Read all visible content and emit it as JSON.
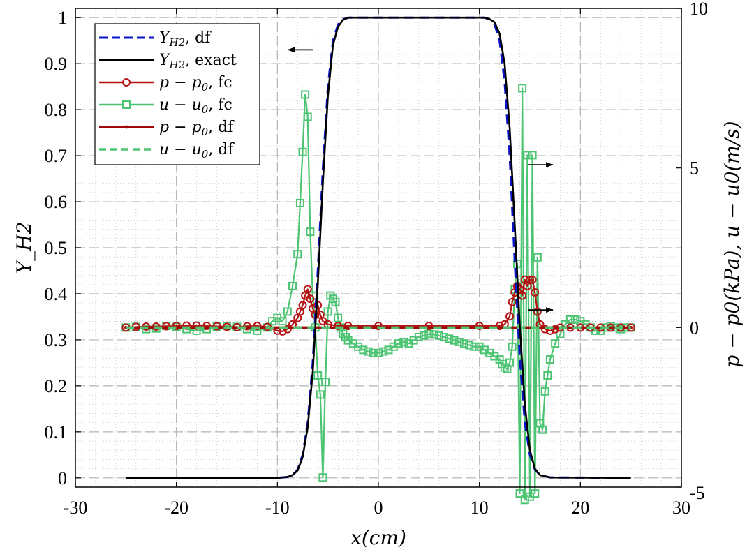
{
  "chart_data": {
    "type": "line",
    "xlabel": "x(cm)",
    "ylabel_left": "Y_H2",
    "ylabel_right": "p − p0(kPa), u − u0(m/s)",
    "xlim": [
      -30,
      30
    ],
    "ylim_left": [
      -0.02,
      1.02
    ],
    "ylim_right": [
      -5,
      10
    ],
    "x_ticks": [
      -30,
      -20,
      -10,
      0,
      10,
      20,
      30
    ],
    "x_tick_labels": [
      "-30",
      "-20",
      "-10",
      "0",
      "10",
      "20",
      "30"
    ],
    "left_ticks": [
      0,
      0.1,
      0.2,
      0.3,
      0.4,
      0.5,
      0.6,
      0.7,
      0.8,
      0.9,
      1
    ],
    "left_tick_labels": [
      "0",
      "0.1",
      "0.2",
      "0.3",
      "0.4",
      "0.5",
      "0.6",
      "0.7",
      "0.8",
      "0.9",
      "1"
    ],
    "right_ticks": [
      -5,
      0,
      5,
      10
    ],
    "right_tick_labels": [
      "-5",
      "0",
      "5",
      "10"
    ],
    "grid": true,
    "legend_position": "top-left",
    "annotations": [
      {
        "label": "arrow-left-to-left-axis",
        "x": -6.5,
        "y_left": 0.93,
        "dir": "left"
      },
      {
        "label": "arrow-right-to-right-axis-1",
        "x": 14.8,
        "y_right": 5.1,
        "dir": "right"
      },
      {
        "label": "arrow-right-to-right-axis-2",
        "x": 14.8,
        "y_right": 0.55,
        "dir": "right"
      }
    ],
    "series": [
      {
        "name": "Y_H2, df",
        "axis": "left",
        "color": "#0a14c8",
        "style": "dashed",
        "marker": "none",
        "legend": [
          "Y",
          "H2",
          ", df"
        ],
        "x": [
          -25,
          -10,
          -9,
          -8.5,
          -8,
          -7.5,
          -7,
          -6.5,
          -6,
          -5.5,
          -5,
          -4.5,
          -4,
          -3.5,
          -3,
          0,
          10.5,
          11,
          11.5,
          12,
          12.5,
          13,
          13.5,
          14,
          14.5,
          15,
          15.5,
          16,
          17,
          25
        ],
        "y": [
          0,
          0,
          0.002,
          0.006,
          0.018,
          0.05,
          0.12,
          0.25,
          0.45,
          0.67,
          0.85,
          0.95,
          0.985,
          0.996,
          1,
          1,
          1,
          0.996,
          0.985,
          0.95,
          0.86,
          0.7,
          0.47,
          0.26,
          0.12,
          0.05,
          0.018,
          0.006,
          0.001,
          0
        ]
      },
      {
        "name": "Y_H2, exact",
        "axis": "left",
        "color": "#000000",
        "style": "solid",
        "marker": "none",
        "legend": [
          "Y",
          "H2",
          ", exact"
        ],
        "x": [
          -25,
          -10,
          -9,
          -8.5,
          -8,
          -7.5,
          -7,
          -6.5,
          -6,
          -5.5,
          -5,
          -4.5,
          -4,
          -3.5,
          -3,
          0,
          10.5,
          11,
          11.5,
          12,
          12.5,
          13,
          13.5,
          14,
          14.5,
          15,
          15.5,
          16,
          17,
          25
        ],
        "y": [
          0,
          0,
          0.002,
          0.006,
          0.016,
          0.045,
          0.11,
          0.23,
          0.42,
          0.64,
          0.83,
          0.94,
          0.98,
          0.995,
          1,
          1,
          1,
          0.997,
          0.99,
          0.965,
          0.9,
          0.76,
          0.55,
          0.33,
          0.16,
          0.06,
          0.02,
          0.006,
          0.001,
          0
        ]
      },
      {
        "name": "p − p0, fc",
        "axis": "right",
        "color": "#b41414",
        "style": "solid",
        "marker": "circle",
        "legend": [
          "p − p",
          "0",
          ", fc"
        ],
        "x": [
          -25,
          -24,
          -23,
          -22,
          -21,
          -20,
          -19,
          -18,
          -17,
          -16,
          -15,
          -14,
          -13,
          -12,
          -11,
          -10,
          -9.5,
          -9,
          -8.5,
          -8,
          -7.75,
          -7.5,
          -7.25,
          -7,
          -6.75,
          -6.5,
          -6.25,
          -6,
          -5.75,
          -5.5,
          -5,
          -4,
          -3,
          0,
          5,
          10,
          12,
          12.5,
          13,
          13.25,
          13.5,
          13.75,
          14,
          14.25,
          14.5,
          14.75,
          15,
          15.25,
          15.5,
          15.75,
          16,
          16.5,
          17,
          17.5,
          18,
          19,
          20,
          21,
          22,
          23,
          24,
          25
        ],
        "y": [
          0,
          0.02,
          0.03,
          0.03,
          0.04,
          0.05,
          0.06,
          0.06,
          0.05,
          0.04,
          0.02,
          0.01,
          0.04,
          0.05,
          0.02,
          -0.1,
          -0.12,
          -0.05,
          0.1,
          0.3,
          0.5,
          0.7,
          1.0,
          1.2,
          0.9,
          0.6,
          0.4,
          0.7,
          0.4,
          0.2,
          0.1,
          0.05,
          0.05,
          0.05,
          0.05,
          0.05,
          0.05,
          0.1,
          0.35,
          0.8,
          1.1,
          1.3,
          1.2,
          1.0,
          1.5,
          1.3,
          1.5,
          1.5,
          1.1,
          0.5,
          0.1,
          -0.05,
          -0.1,
          -0.05,
          0,
          0,
          0,
          0,
          0,
          0,
          0,
          0
        ]
      },
      {
        "name": "u − u0, fc",
        "axis": "right",
        "color": "#4cc472",
        "style": "solid",
        "marker": "square",
        "legend": [
          "u − u",
          "0",
          ", fc"
        ],
        "x": [
          -25,
          -24,
          -23,
          -22,
          -21,
          -20,
          -19,
          -18,
          -17,
          -16,
          -15,
          -14,
          -13,
          -12,
          -11,
          -10.5,
          -10,
          -9.5,
          -9,
          -8.5,
          -8,
          -7.75,
          -7.5,
          -7.25,
          -7,
          -6.75,
          -6.5,
          -6.25,
          -6,
          -5.75,
          -5.5,
          -5.25,
          -5,
          -4.75,
          -4.5,
          -4.25,
          -4,
          -3.75,
          -3.5,
          -3.25,
          -3,
          -2.5,
          -2,
          -1.5,
          -1,
          -0.5,
          0,
          0.5,
          1,
          1.5,
          2,
          2.5,
          3,
          3.5,
          4,
          4.5,
          5,
          5.5,
          6,
          6.5,
          7,
          7.5,
          8,
          8.5,
          9,
          9.5,
          10,
          10.5,
          11,
          11.5,
          12,
          12.25,
          12.5,
          12.75,
          13,
          13.25,
          13.5,
          13.75,
          14,
          14.25,
          14.5,
          14.75,
          15,
          15.25,
          15.5,
          15.75,
          16,
          16.25,
          16.5,
          16.75,
          17,
          17.5,
          18,
          18.5,
          19,
          19.5,
          20,
          20.5,
          21,
          21.5,
          22,
          22.5,
          23,
          23.5,
          24,
          24.5,
          25
        ],
        "y": [
          0,
          0.02,
          -0.05,
          -0.03,
          0.05,
          0.02,
          -0.05,
          -0.1,
          -0.05,
          0.03,
          0.05,
          0.02,
          -0.05,
          -0.1,
          0,
          0.2,
          0.3,
          0.2,
          0.5,
          1.3,
          2.3,
          3.9,
          5.5,
          7.3,
          6.6,
          3.0,
          1.0,
          0,
          -1.5,
          -2.1,
          -4.7,
          -1.7,
          0.5,
          1.0,
          0.9,
          0.8,
          0.3,
          0,
          -0.2,
          -0.3,
          -0.4,
          -0.5,
          -0.6,
          -0.7,
          -0.75,
          -0.8,
          -0.8,
          -0.75,
          -0.7,
          -0.6,
          -0.5,
          -0.45,
          -0.5,
          -0.4,
          -0.3,
          -0.25,
          -0.2,
          -0.22,
          -0.25,
          -0.3,
          -0.35,
          -0.4,
          -0.45,
          -0.5,
          -0.55,
          -0.6,
          -0.6,
          -0.7,
          -0.8,
          -0.9,
          -1.0,
          -1.15,
          -1.25,
          -1.3,
          -1.1,
          -0.6,
          1.2,
          2.0,
          -5.2,
          7.5,
          -5.4,
          5.4,
          -5.3,
          5.4,
          -5.2,
          2.2,
          -3.0,
          -3.2,
          -2.0,
          -1.5,
          -1.0,
          -0.5,
          -0.2,
          0.1,
          0.25,
          0.25,
          0.2,
          0.1,
          0,
          -0.1,
          -0.1,
          0,
          0.05,
          0,
          -0.05,
          0,
          0
        ]
      },
      {
        "name": "p − p0, df",
        "axis": "right",
        "color": "#a00808",
        "style": "solid-thick",
        "marker": "point",
        "legend": [
          "p − p",
          "0",
          ", df"
        ],
        "x": [
          -25,
          25
        ],
        "y": [
          0,
          0
        ]
      },
      {
        "name": "u − u0, df",
        "axis": "right",
        "color": "#4cc472",
        "style": "dashed-thick",
        "marker": "none",
        "legend": [
          "u − u",
          "0",
          ", df"
        ],
        "x": [
          -25,
          25
        ],
        "y": [
          0,
          0
        ]
      }
    ]
  }
}
